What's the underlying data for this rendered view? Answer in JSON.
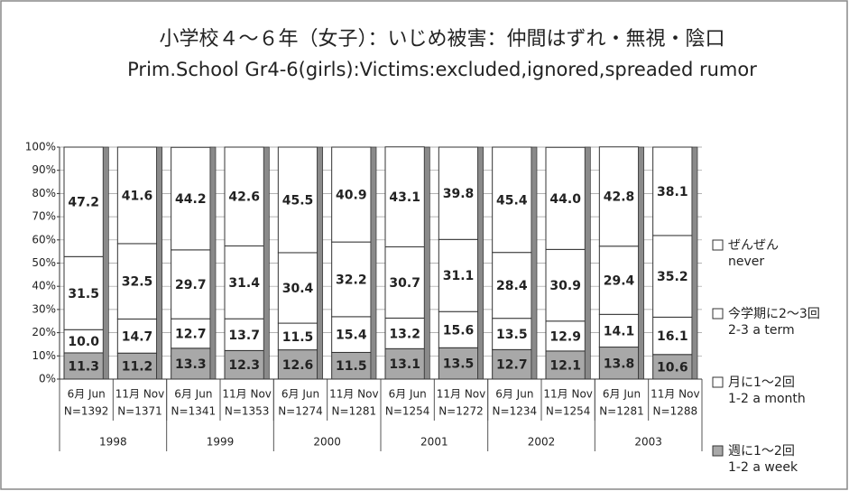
{
  "chart_data": {
    "type": "stacked_bar",
    "title": "小学校４〜６年（女子）：いじめ被害：仲間はずれ・無視・陰口",
    "subtitle": "Prim.School Gr4-6(girls):Victims:excluded,ignored,spreaded rumor",
    "categories": [
      "6月 Jun",
      "11月 Nov",
      "6月 Jun",
      "11月 Nov",
      "6月 Jun",
      "11月 Nov",
      "6月 Jun",
      "11月 Nov",
      "6月 Jun",
      "11月 Nov",
      "6月 Jun",
      "11月 Nov"
    ],
    "n_labels": [
      "N=1392",
      "N=1371",
      "N=1341",
      "N=1353",
      "N=1274",
      "N=1281",
      "N=1254",
      "N=1272",
      "N=1234",
      "N=1254",
      "N=1281",
      "N=1288"
    ],
    "groups": [
      "1998",
      "1999",
      "2000",
      "2001",
      "2002",
      "2003"
    ],
    "ylim": [
      0,
      100
    ],
    "yticks": [
      {
        "value": 0,
        "label": "0%"
      },
      {
        "value": 10,
        "label": "10%"
      },
      {
        "value": 20,
        "label": "20%"
      },
      {
        "value": 30,
        "label": "30%"
      },
      {
        "value": 40,
        "label": "40%"
      },
      {
        "value": 50,
        "label": "50%"
      },
      {
        "value": 60,
        "label": "60%"
      },
      {
        "value": 70,
        "label": "70%"
      },
      {
        "value": 80,
        "label": "80%"
      },
      {
        "value": 90,
        "label": "90%"
      },
      {
        "value": 100,
        "label": "100%"
      }
    ],
    "grid": true,
    "series": [
      {
        "name": "週に1〜2回",
        "subname": "1-2 a week",
        "color": "#a8a8a8",
        "values": [
          11.3,
          11.2,
          13.3,
          12.3,
          12.6,
          11.5,
          13.1,
          13.5,
          12.7,
          12.1,
          13.8,
          10.6
        ],
        "value_labels": [
          "11.3",
          "11.2",
          "13.3",
          "12.3",
          "12.6",
          "11.5",
          "13.1",
          "13.5",
          "12.7",
          "12.1",
          "13.8",
          "10.6"
        ]
      },
      {
        "name": "月に1〜2回",
        "subname": "1-2 a month",
        "color": "#ffffff",
        "values": [
          10.0,
          14.7,
          12.7,
          13.7,
          11.5,
          15.4,
          13.2,
          15.6,
          13.5,
          12.9,
          14.1,
          16.1
        ],
        "value_labels": [
          "10.0",
          "14.7",
          "12.7",
          "13.7",
          "11.5",
          "15.4",
          "13.2",
          "15.6",
          "13.5",
          "12.9",
          "14.1",
          "16.1"
        ]
      },
      {
        "name": "今学期に2〜3回",
        "subname": "2-3 a term",
        "color": "#ffffff",
        "values": [
          31.5,
          32.5,
          29.7,
          31.4,
          30.4,
          32.2,
          30.7,
          31.1,
          28.4,
          30.9,
          29.4,
          35.2
        ],
        "value_labels": [
          "31.5",
          "32.5",
          "29.7",
          "31.4",
          "30.4",
          "32.2",
          "30.7",
          "31.1",
          "28.4",
          "30.9",
          "29.4",
          "35.2"
        ]
      },
      {
        "name": "ぜんぜん",
        "subname": "never",
        "color": "#ffffff",
        "values": [
          47.2,
          41.6,
          44.2,
          42.6,
          45.5,
          40.9,
          43.1,
          39.8,
          45.4,
          44.0,
          42.8,
          38.1
        ],
        "value_labels": [
          "47.2",
          "41.6",
          "44.2",
          "42.6",
          "45.5",
          "40.9",
          "43.1",
          "39.8",
          "45.4",
          "44.0",
          "42.8",
          "38.1"
        ]
      }
    ]
  }
}
